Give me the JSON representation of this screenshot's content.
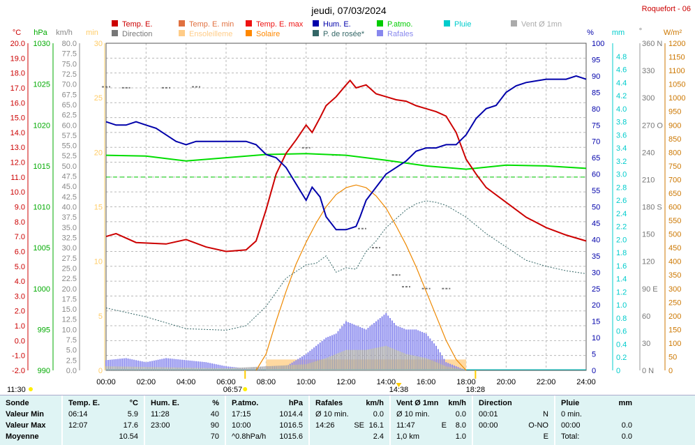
{
  "title": "jeudi, 07/03/2024",
  "station": "Roquefort - 06",
  "legend": [
    {
      "label": "Temp. E.",
      "color": "#cc0000"
    },
    {
      "label": "Temp. E. min",
      "color": "#e07040"
    },
    {
      "label": "Temp. E. max",
      "color": "#ee1111"
    },
    {
      "label": "Hum. E.",
      "color": "#0000aa"
    },
    {
      "label": "P.atmo.",
      "color": "#00cc00"
    },
    {
      "label": "Pluie",
      "color": "#00cccc"
    },
    {
      "label": "Vent Ø 1mn",
      "color": "#aaaaaa"
    },
    {
      "label": "Direction",
      "color": "#777777"
    },
    {
      "label": "Ensoleilleme",
      "color": "#ffcc88"
    },
    {
      "label": "Solaire",
      "color": "#ff8800"
    },
    {
      "label": "P. de rosée*",
      "color": "#336666"
    },
    {
      "label": "Rafales",
      "color": "#8888ee"
    }
  ],
  "units": {
    "temp": "°C",
    "press": "hPa",
    "wind": "km/h",
    "sun": "min",
    "hum": "%",
    "rain": "mm",
    "dir": "°",
    "solar": "W/m²"
  },
  "axes": {
    "temp_ticks": [
      "20.0",
      "19.0",
      "18.0",
      "17.0",
      "16.0",
      "15.0",
      "14.0",
      "13.0",
      "12.0",
      "11.0",
      "10.0",
      "9.0",
      "8.0",
      "7.0",
      "6.0",
      "5.0",
      "4.0",
      "3.0",
      "2.0",
      "1.0",
      "0.0",
      "-1.0",
      "-2.0"
    ],
    "press_ticks": [
      "1030",
      "1025",
      "1020",
      "1015",
      "1010",
      "1005",
      "1000",
      "995",
      "990"
    ],
    "wind_ticks": [
      "80.0",
      "77.5",
      "75.0",
      "72.5",
      "70.0",
      "67.5",
      "65.0",
      "62.5",
      "60.0",
      "57.5",
      "55.0",
      "52.5",
      "50.0",
      "47.5",
      "45.0",
      "42.5",
      "40.0",
      "37.5",
      "35.0",
      "32.5",
      "30.0",
      "27.5",
      "25.0",
      "22.5",
      "20.0",
      "17.5",
      "15.0",
      "12.5",
      "10.0",
      "7.5",
      "5.0",
      "2.5",
      "0.0"
    ],
    "sun_ticks": [
      "30",
      "25",
      "20",
      "15",
      "10",
      "5",
      "0"
    ],
    "hum_ticks": [
      "100",
      "95",
      "90",
      "85",
      "80",
      "75",
      "70",
      "65",
      "60",
      "55",
      "50",
      "45",
      "40",
      "35",
      "30",
      "25",
      "20",
      "15",
      "10",
      "5",
      "0"
    ],
    "rain_ticks": [
      "4.8",
      "4.6",
      "4.4",
      "4.2",
      "4.0",
      "3.8",
      "3.6",
      "3.4",
      "3.2",
      "3.0",
      "2.8",
      "2.6",
      "2.4",
      "2.2",
      "2.0",
      "1.8",
      "1.6",
      "1.4",
      "1.2",
      "1.0",
      "0.8",
      "0.6",
      "0.4",
      "0.2",
      "0"
    ],
    "dir_ticks": [
      "360 N",
      "330",
      "300",
      "270 O",
      "240",
      "210",
      "180 S",
      "150",
      "120",
      "90 E",
      "60",
      "30",
      "0 N"
    ],
    "solar_ticks": [
      "1200",
      "1150",
      "1100",
      "1050",
      "1000",
      "950",
      "900",
      "850",
      "800",
      "750",
      "700",
      "650",
      "600",
      "550",
      "500",
      "450",
      "400",
      "350",
      "300",
      "250",
      "200",
      "150",
      "100",
      "50",
      "0"
    ],
    "time_ticks": [
      "00:00",
      "02:00",
      "04:00",
      "06:00",
      "08:00",
      "10:00",
      "12:00",
      "14:00",
      "16:00",
      "18:00",
      "20:00",
      "22:00",
      "24:00"
    ]
  },
  "markers": {
    "moonrise": "11:30",
    "sunrise": "06:57",
    "solar_noon": "14:38",
    "sunset": "18:28"
  },
  "chart_data": {
    "type": "line",
    "x_unit": "hour",
    "xlim": [
      0,
      24
    ],
    "series": [
      {
        "name": "Temp. E.",
        "axis": "°C",
        "values": [
          [
            0,
            7.0
          ],
          [
            0.5,
            7.2
          ],
          [
            1.5,
            6.6
          ],
          [
            3,
            6.5
          ],
          [
            4,
            6.8
          ],
          [
            5,
            6.3
          ],
          [
            6,
            6.0
          ],
          [
            7,
            6.1
          ],
          [
            7.5,
            6.7
          ],
          [
            8,
            8.8
          ],
          [
            8.5,
            11.2
          ],
          [
            9,
            12.6
          ],
          [
            9.5,
            13.5
          ],
          [
            10,
            14.5
          ],
          [
            10.3,
            14.0
          ],
          [
            10.7,
            15.0
          ],
          [
            11,
            15.8
          ],
          [
            11.5,
            16.4
          ],
          [
            12,
            17.2
          ],
          [
            12.2,
            17.5
          ],
          [
            12.5,
            17.0
          ],
          [
            13,
            17.2
          ],
          [
            13.5,
            16.6
          ],
          [
            14,
            16.4
          ],
          [
            14.5,
            16.2
          ],
          [
            15,
            16.1
          ],
          [
            15.5,
            15.8
          ],
          [
            16,
            15.6
          ],
          [
            16.5,
            15.4
          ],
          [
            17,
            15.1
          ],
          [
            17.5,
            14.0
          ],
          [
            18,
            12.2
          ],
          [
            18.5,
            11.2
          ],
          [
            19,
            10.3
          ],
          [
            20,
            9.3
          ],
          [
            21,
            8.3
          ],
          [
            22,
            7.6
          ],
          [
            23,
            7.1
          ],
          [
            24,
            6.7
          ]
        ]
      },
      {
        "name": "Hum. E.",
        "axis": "%",
        "values": [
          [
            0,
            76
          ],
          [
            0.5,
            75
          ],
          [
            1,
            75
          ],
          [
            1.5,
            76
          ],
          [
            2,
            75
          ],
          [
            2.5,
            74
          ],
          [
            3,
            72
          ],
          [
            3.5,
            70
          ],
          [
            4,
            69
          ],
          [
            4.5,
            70
          ],
          [
            5,
            70
          ],
          [
            6,
            70
          ],
          [
            7,
            70
          ],
          [
            7.5,
            69
          ],
          [
            8,
            66
          ],
          [
            8.5,
            65
          ],
          [
            9,
            62
          ],
          [
            9.5,
            57
          ],
          [
            10,
            52
          ],
          [
            10.3,
            56
          ],
          [
            10.7,
            53
          ],
          [
            11,
            47
          ],
          [
            11.5,
            43
          ],
          [
            12,
            43
          ],
          [
            12.5,
            44
          ],
          [
            12.7,
            47
          ],
          [
            13,
            52
          ],
          [
            13.5,
            56
          ],
          [
            14,
            60
          ],
          [
            14.5,
            62
          ],
          [
            15,
            64
          ],
          [
            15.5,
            67
          ],
          [
            16,
            68
          ],
          [
            16.5,
            68
          ],
          [
            17,
            69
          ],
          [
            17.5,
            69
          ],
          [
            18,
            72
          ],
          [
            18.5,
            77
          ],
          [
            19,
            80
          ],
          [
            19.5,
            81
          ],
          [
            20,
            85
          ],
          [
            20.5,
            87
          ],
          [
            21,
            88
          ],
          [
            22,
            89
          ],
          [
            23,
            89
          ],
          [
            23.5,
            90
          ],
          [
            24,
            89
          ]
        ]
      },
      {
        "name": "P.atmo.",
        "axis": "hPa",
        "values": [
          [
            0,
            1016.3
          ],
          [
            2,
            1016.2
          ],
          [
            4,
            1015.6
          ],
          [
            6,
            1016.0
          ],
          [
            8,
            1016.4
          ],
          [
            10,
            1016.5
          ],
          [
            12,
            1016.3
          ],
          [
            14,
            1015.7
          ],
          [
            16,
            1015.0
          ],
          [
            18,
            1014.6
          ],
          [
            20,
            1015.1
          ],
          [
            22,
            1015.0
          ],
          [
            24,
            1014.7
          ]
        ]
      },
      {
        "name": "P. de rosée*",
        "axis": "°C",
        "values": [
          [
            0,
            2.2
          ],
          [
            2,
            1.6
          ],
          [
            4,
            0.8
          ],
          [
            6,
            0.7
          ],
          [
            7,
            1.0
          ],
          [
            8,
            2.3
          ],
          [
            9,
            4.2
          ],
          [
            10,
            5.1
          ],
          [
            10.5,
            5.2
          ],
          [
            11,
            5.7
          ],
          [
            11.5,
            4.6
          ],
          [
            12,
            4.9
          ],
          [
            12.5,
            4.8
          ],
          [
            13,
            6.0
          ],
          [
            13.5,
            6.7
          ],
          [
            14,
            7.6
          ],
          [
            14.5,
            8.2
          ],
          [
            15,
            8.8
          ],
          [
            15.5,
            9.2
          ],
          [
            16,
            9.4
          ],
          [
            16.5,
            9.3
          ],
          [
            17,
            9.1
          ],
          [
            18,
            8.3
          ],
          [
            19,
            7.2
          ],
          [
            20,
            6.3
          ],
          [
            21,
            5.4
          ],
          [
            22,
            5.0
          ],
          [
            23,
            4.7
          ],
          [
            24,
            4.5
          ]
        ]
      },
      {
        "name": "Solaire",
        "axis": "W/m²",
        "values": [
          [
            7.5,
            0
          ],
          [
            8,
            60
          ],
          [
            8.5,
            180
          ],
          [
            9,
            290
          ],
          [
            9.5,
            390
          ],
          [
            10,
            470
          ],
          [
            10.5,
            540
          ],
          [
            11,
            600
          ],
          [
            11.5,
            645
          ],
          [
            12,
            670
          ],
          [
            12.5,
            680
          ],
          [
            13,
            670
          ],
          [
            13.5,
            640
          ],
          [
            14,
            595
          ],
          [
            14.5,
            530
          ],
          [
            15,
            460
          ],
          [
            15.5,
            380
          ],
          [
            16,
            290
          ],
          [
            16.5,
            200
          ],
          [
            17,
            110
          ],
          [
            17.5,
            40
          ],
          [
            18,
            0
          ]
        ]
      },
      {
        "name": "Rafales",
        "axis": "km/h",
        "values": [
          [
            0,
            2.5
          ],
          [
            1,
            3
          ],
          [
            2,
            2
          ],
          [
            3,
            3
          ],
          [
            4,
            2.5
          ],
          [
            5,
            2
          ],
          [
            6,
            1
          ],
          [
            7,
            0.5
          ],
          [
            8,
            1
          ],
          [
            9,
            1
          ],
          [
            10,
            4
          ],
          [
            10.5,
            6
          ],
          [
            11,
            8
          ],
          [
            11.5,
            9
          ],
          [
            12,
            12
          ],
          [
            12.5,
            11
          ],
          [
            13,
            10
          ],
          [
            13.5,
            12
          ],
          [
            14,
            14
          ],
          [
            14.5,
            11
          ],
          [
            15,
            10
          ],
          [
            15.5,
            10
          ],
          [
            16,
            9
          ],
          [
            16.5,
            6
          ],
          [
            17,
            2
          ],
          [
            18,
            0
          ],
          [
            24,
            0
          ]
        ]
      },
      {
        "name": "Vent Ø 1mn",
        "axis": "km/h",
        "values": [
          [
            0,
            1
          ],
          [
            6,
            0.5
          ],
          [
            10,
            1.5
          ],
          [
            11,
            3
          ],
          [
            12,
            5
          ],
          [
            13,
            5
          ],
          [
            14,
            6
          ],
          [
            15,
            4
          ],
          [
            16,
            3
          ],
          [
            17,
            1
          ],
          [
            18,
            0
          ],
          [
            24,
            0
          ]
        ]
      },
      {
        "name": "Direction",
        "axis": "°",
        "values": [
          [
            0,
            312
          ],
          [
            1,
            311
          ],
          [
            3,
            311
          ],
          [
            4.5,
            312
          ],
          [
            10,
            245
          ],
          [
            11.5,
            237
          ],
          [
            12.8,
            156
          ],
          [
            13.5,
            135
          ],
          [
            14.5,
            105
          ],
          [
            15,
            92
          ],
          [
            16,
            90
          ],
          [
            17,
            90
          ]
        ]
      },
      {
        "name": "Ensoleilleme",
        "axis": "min",
        "values": [
          [
            8,
            1
          ],
          [
            18,
            1
          ]
        ]
      }
    ],
    "reference_lines": [
      {
        "value": 11.0,
        "axis": "°C",
        "style": "dashed",
        "color": "#00cc00"
      }
    ]
  },
  "table": {
    "columns": [
      {
        "title": "Sonde",
        "unit": "",
        "rows": [
          [
            "Valeur Min",
            "",
            ""
          ],
          [
            "Valeur Max",
            "",
            ""
          ],
          [
            "Moyenne",
            "",
            ""
          ]
        ]
      },
      {
        "title": "Temp. E.",
        "unit": "°C",
        "rows": [
          [
            "06:14",
            "",
            "5.9"
          ],
          [
            "12:07",
            "",
            "17.6"
          ],
          [
            "",
            "",
            "10.54"
          ]
        ]
      },
      {
        "title": "Hum. E.",
        "unit": "%",
        "rows": [
          [
            "11:28",
            "",
            "40"
          ],
          [
            "23:00",
            "",
            "90"
          ],
          [
            "",
            "",
            "70"
          ]
        ]
      },
      {
        "title": "P.atmo.",
        "unit": "hPa",
        "rows": [
          [
            "17:15",
            "",
            "1014.4"
          ],
          [
            "10:00",
            "",
            "1016.5"
          ],
          [
            "^0.8hPa/h",
            "",
            "1015.6"
          ]
        ]
      },
      {
        "title": "Rafales",
        "unit": "km/h",
        "rows": [
          [
            "Ø 10 min.",
            "",
            "0.0"
          ],
          [
            "14:26",
            "SE",
            "16.1"
          ],
          [
            "",
            "",
            "2.4"
          ]
        ]
      },
      {
        "title": "Vent Ø 1mn",
        "unit": "km/h",
        "rows": [
          [
            "Ø 10 min.",
            "",
            "0.0"
          ],
          [
            "11:47",
            "E",
            "8.0"
          ],
          [
            "1,0 km",
            "",
            "1.0"
          ]
        ]
      },
      {
        "title": "Direction",
        "unit": "",
        "rows": [
          [
            "00:01",
            "",
            "N"
          ],
          [
            "00:00",
            "",
            "O-NO"
          ],
          [
            "",
            "",
            "E"
          ]
        ]
      },
      {
        "title": "Pluie",
        "unit": "mm",
        "rows": [
          [
            "0 min.",
            "",
            ""
          ],
          [
            "00:00",
            "",
            "0.0"
          ],
          [
            "Total:",
            "",
            "0.0"
          ]
        ]
      }
    ]
  }
}
